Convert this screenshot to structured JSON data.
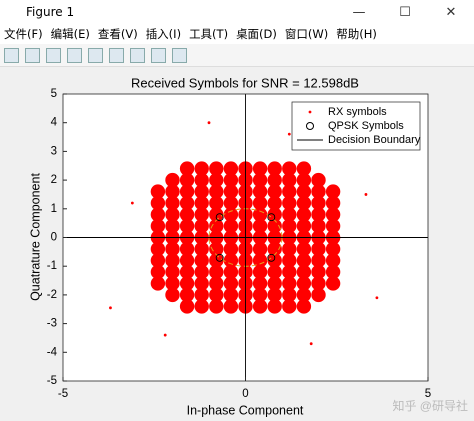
{
  "window": {
    "title": "Figure 1",
    "menu": [
      "文件(F)",
      "编辑(E)",
      "查看(V)",
      "插入(I)",
      "工具(T)",
      "桌面(D)",
      "窗口(W)",
      "帮助(H)"
    ]
  },
  "watermark": "知乎 @研导社",
  "chart_data": {
    "type": "scatter",
    "title": "Received Symbols for SNR = 12.598dB",
    "xlabel": "In-phase Component",
    "ylabel": "Quatrature Component",
    "xlim": [
      -5,
      5
    ],
    "ylim": [
      -5,
      5
    ],
    "xticks": [
      -5,
      0,
      5
    ],
    "yticks": [
      -5,
      -4,
      -3,
      -2,
      -1,
      0,
      1,
      2,
      3,
      4,
      5
    ],
    "legend": "upper right",
    "series": [
      {
        "name": "RX symbols",
        "color": "#ff0000",
        "marker": "dot",
        "x": [
          -1.6,
          -1.2,
          -0.8,
          -0.4,
          0,
          0.4,
          0.8,
          1.2,
          1.6,
          -2,
          -1.6,
          -1.2,
          -0.8,
          -0.4,
          0,
          0.4,
          0.8,
          1.2,
          1.6,
          2,
          -2.4,
          -2,
          -1.6,
          -1.2,
          -0.8,
          -0.4,
          0,
          0.4,
          0.8,
          1.2,
          1.6,
          2,
          2.4,
          -2.4,
          -2,
          -1.6,
          -1.2,
          -0.8,
          -0.4,
          0,
          0.4,
          0.8,
          1.2,
          1.6,
          2,
          2.4,
          -2.4,
          -2,
          -1.6,
          -1.2,
          -0.8,
          -0.4,
          0,
          0.4,
          0.8,
          1.2,
          1.6,
          2,
          2.4,
          -2.4,
          -2,
          -1.6,
          -1.2,
          -0.8,
          -0.4,
          0,
          0.4,
          0.8,
          1.2,
          1.6,
          2,
          2.4,
          -2.4,
          -2,
          -1.6,
          -1.2,
          -0.8,
          -0.4,
          0,
          0.4,
          0.8,
          1.2,
          1.6,
          2,
          2.4,
          -2.4,
          -2,
          -1.6,
          -1.2,
          -0.8,
          -0.4,
          0,
          0.4,
          0.8,
          1.2,
          1.6,
          2,
          2.4,
          -2.4,
          -2,
          -1.6,
          -1.2,
          -0.8,
          -0.4,
          0,
          0.4,
          0.8,
          1.2,
          1.6,
          2,
          2.4,
          -2.4,
          -2,
          -1.6,
          -1.2,
          -0.8,
          -0.4,
          0,
          0.4,
          0.8,
          1.2,
          1.6,
          2,
          2.4,
          -2.4,
          -2,
          -1.6,
          -1.2,
          -0.8,
          -0.4,
          0,
          0.4,
          0.8,
          1.2,
          1.6,
          2,
          2.4,
          -2,
          -1.6,
          -1.2,
          -0.8,
          -0.4,
          0,
          0.4,
          0.8,
          1.2,
          1.6,
          2,
          -1.6,
          -1.2,
          -0.8,
          -0.4,
          0,
          0.4,
          0.8,
          1.2,
          1.6,
          -3.7,
          3.6,
          -1,
          1.2,
          1.8,
          -3.1,
          3.3,
          -2.2
        ],
        "y": [
          2.4,
          2.4,
          2.4,
          2.4,
          2.4,
          2.4,
          2.4,
          2.4,
          2.4,
          2,
          2,
          2,
          2,
          2,
          2,
          2,
          2,
          2,
          2,
          2,
          1.6,
          1.6,
          1.6,
          1.6,
          1.6,
          1.6,
          1.6,
          1.6,
          1.6,
          1.6,
          1.6,
          1.6,
          1.6,
          1.2,
          1.2,
          1.2,
          1.2,
          1.2,
          1.2,
          1.2,
          1.2,
          1.2,
          1.2,
          1.2,
          1.2,
          1.2,
          0.8,
          0.8,
          0.8,
          0.8,
          0.8,
          0.8,
          0.8,
          0.8,
          0.8,
          0.8,
          0.8,
          0.8,
          0.8,
          0.4,
          0.4,
          0.4,
          0.4,
          0.4,
          0.4,
          0.4,
          0.4,
          0.4,
          0.4,
          0.4,
          0.4,
          0.4,
          0,
          0,
          0,
          0,
          0,
          0,
          0,
          0,
          0,
          0,
          0,
          0,
          0,
          -0.4,
          -0.4,
          -0.4,
          -0.4,
          -0.4,
          -0.4,
          -0.4,
          -0.4,
          -0.4,
          -0.4,
          -0.4,
          -0.4,
          -0.4,
          -0.8,
          -0.8,
          -0.8,
          -0.8,
          -0.8,
          -0.8,
          -0.8,
          -0.8,
          -0.8,
          -0.8,
          -0.8,
          -0.8,
          -0.8,
          -1.2,
          -1.2,
          -1.2,
          -1.2,
          -1.2,
          -1.2,
          -1.2,
          -1.2,
          -1.2,
          -1.2,
          -1.2,
          -1.2,
          -1.2,
          -1.6,
          -1.6,
          -1.6,
          -1.6,
          -1.6,
          -1.6,
          -1.6,
          -1.6,
          -1.6,
          -1.6,
          -1.6,
          -1.6,
          -1.6,
          -2,
          -2,
          -2,
          -2,
          -2,
          -2,
          -2,
          -2,
          -2,
          -2,
          -2,
          -2.4,
          -2.4,
          -2.4,
          -2.4,
          -2.4,
          -2.4,
          -2.4,
          -2.4,
          -2.4,
          -2.45,
          -2.1,
          4,
          3.6,
          -3.7,
          1.2,
          1.5,
          -3.4
        ]
      },
      {
        "name": "QPSK Symbols",
        "color": "#000000",
        "marker": "circle",
        "x": [
          0.707,
          -0.707,
          -0.707,
          0.707
        ],
        "y": [
          0.707,
          0.707,
          -0.707,
          -0.707
        ]
      },
      {
        "name": "Decision Boundary",
        "color": "#000000",
        "marker": "line"
      }
    ],
    "reference_circle": {
      "radius": 1,
      "color": "#e0a020"
    }
  }
}
